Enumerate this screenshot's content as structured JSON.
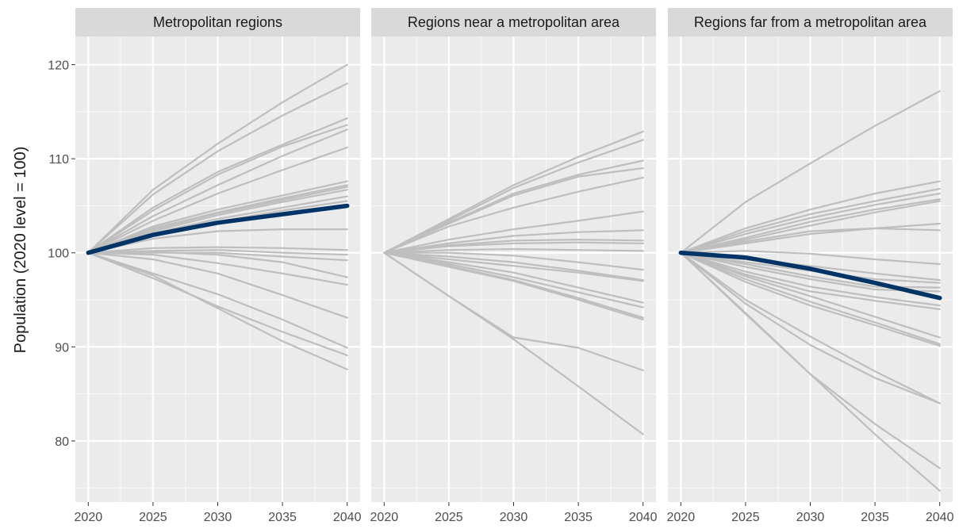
{
  "chart_data": {
    "type": "line",
    "ylabel": "Population (2020 level = 100)",
    "xlabel": "",
    "x": [
      2020,
      2025,
      2030,
      2035,
      2040
    ],
    "xticks": [
      2020,
      2025,
      2030,
      2035,
      2040
    ],
    "yticks": [
      80,
      90,
      100,
      110,
      120
    ],
    "ylim": [
      73.5,
      123
    ],
    "xlim": [
      2019,
      2041
    ],
    "grid": true,
    "background_color": "#ebebeb",
    "colors": {
      "region": "#bebebe",
      "highlight": "#003366"
    },
    "panels": [
      {
        "title": "Metropolitan regions",
        "series": [
          {
            "values": [
              100,
              106.7,
              111.6,
              116.0,
              120.0
            ]
          },
          {
            "values": [
              100,
              106.2,
              110.8,
              114.6,
              118.0
            ]
          },
          {
            "values": [
              100,
              104.8,
              108.6,
              111.5,
              114.3
            ]
          },
          {
            "values": [
              100,
              104.5,
              108.3,
              111.3,
              113.6
            ]
          },
          {
            "values": [
              100,
              103.9,
              107.2,
              110.3,
              113.1
            ]
          },
          {
            "values": [
              100,
              103.4,
              106.3,
              108.8,
              111.2
            ]
          },
          {
            "values": [
              100,
              102.8,
              104.6,
              106.1,
              107.6
            ]
          },
          {
            "values": [
              100,
              102.6,
              104.3,
              105.8,
              107.2
            ]
          },
          {
            "values": [
              100,
              102.5,
              104.2,
              105.6,
              107.0
            ]
          },
          {
            "values": [
              100,
              102.3,
              104.0,
              105.4,
              106.7
            ]
          },
          {
            "values": [
              100,
              102.1,
              103.6,
              104.8,
              106.0
            ]
          },
          {
            "values": [
              100,
              101.9,
              103.3,
              104.5,
              105.5
            ]
          },
          {
            "values": [
              100,
              101.5,
              102.3,
              102.5,
              102.5
            ]
          },
          {
            "values": [
              100,
              100.5,
              100.6,
              100.5,
              100.3
            ]
          },
          {
            "values": [
              100,
              100.2,
              100.3,
              100.0,
              99.8
            ]
          },
          {
            "values": [
              100,
              100.0,
              100.0,
              99.6,
              99.2
            ]
          },
          {
            "values": [
              100,
              100.1,
              99.8,
              99.0,
              97.4
            ]
          },
          {
            "values": [
              100,
              99.8,
              98.9,
              97.8,
              96.6
            ]
          },
          {
            "values": [
              100,
              99.3,
              97.8,
              95.5,
              93.1
            ]
          },
          {
            "values": [
              100,
              97.8,
              95.6,
              92.9,
              89.9
            ]
          },
          {
            "values": [
              100,
              97.3,
              94.3,
              91.6,
              89.1
            ]
          },
          {
            "values": [
              100,
              97.6,
              94.1,
              90.6,
              87.6
            ]
          }
        ],
        "highlight": {
          "values": [
            100,
            101.9,
            103.2,
            104.1,
            105.0
          ]
        }
      },
      {
        "title": "Regions near a metropolitan area",
        "series": [
          {
            "values": [
              100,
              103.6,
              107.2,
              110.2,
              112.9
            ]
          },
          {
            "values": [
              100,
              103.4,
              106.9,
              109.6,
              112.0
            ]
          },
          {
            "values": [
              100,
              103.2,
              106.3,
              108.3,
              109.8
            ]
          },
          {
            "values": [
              100,
              103.1,
              106.1,
              108.1,
              109.0
            ]
          },
          {
            "values": [
              100,
              102.8,
              104.8,
              106.5,
              108.0
            ]
          },
          {
            "values": [
              100,
              101.4,
              102.5,
              103.4,
              104.4
            ]
          },
          {
            "values": [
              100,
              101.0,
              101.8,
              102.2,
              102.4
            ]
          },
          {
            "values": [
              100,
              100.8,
              101.3,
              101.4,
              101.3
            ]
          },
          {
            "values": [
              100,
              100.7,
              101.0,
              101.1,
              101.0
            ]
          },
          {
            "values": [
              100,
              100.3,
              100.4,
              100.3,
              100.2
            ]
          },
          {
            "values": [
              100,
              100.0,
              99.7,
              99.0,
              98.2
            ]
          },
          {
            "values": [
              100,
              99.6,
              99.0,
              98.1,
              97.1
            ]
          },
          {
            "values": [
              100,
              99.3,
              98.6,
              97.9,
              97.0
            ]
          },
          {
            "values": [
              100,
              99.0,
              97.9,
              96.3,
              94.7
            ]
          },
          {
            "values": [
              100,
              98.8,
              97.4,
              95.8,
              94.2
            ]
          },
          {
            "values": [
              100,
              98.6,
              97.1,
              95.2,
              93.1
            ]
          },
          {
            "values": [
              100,
              98.5,
              97.0,
              95.0,
              92.9
            ]
          },
          {
            "values": [
              100,
              95.4,
              91.0,
              89.9,
              87.5
            ]
          },
          {
            "values": [
              100,
              95.4,
              90.8,
              85.8,
              80.7
            ]
          }
        ]
      },
      {
        "title": "Regions far from a metropolitan area",
        "series": [
          {
            "values": [
              100,
              105.4,
              109.5,
              113.5,
              117.2
            ]
          },
          {
            "values": [
              100,
              102.6,
              104.6,
              106.3,
              107.6
            ]
          },
          {
            "values": [
              100,
              102.3,
              104.1,
              105.5,
              106.8
            ]
          },
          {
            "values": [
              100,
              102.0,
              103.7,
              105.1,
              106.3
            ]
          },
          {
            "values": [
              100,
              101.6,
              103.3,
              104.6,
              105.7
            ]
          },
          {
            "values": [
              100,
              101.4,
              102.9,
              104.3,
              105.5
            ]
          },
          {
            "values": [
              100,
              101.0,
              102.0,
              102.6,
              103.1
            ]
          },
          {
            "values": [
              100,
              101.2,
              102.3,
              102.6,
              102.4
            ]
          },
          {
            "values": [
              100,
              100.2,
              99.9,
              99.3,
              98.8
            ]
          },
          {
            "values": [
              100,
              99.3,
              98.6,
              97.8,
              97.1
            ]
          },
          {
            "values": [
              100,
              99.0,
              98.1,
              97.2,
              96.8
            ]
          },
          {
            "values": [
              100,
              98.8,
              97.5,
              96.4,
              96.3
            ]
          },
          {
            "values": [
              100,
              98.5,
              97.2,
              96.1,
              95.9
            ]
          },
          {
            "values": [
              100,
              98.0,
              96.4,
              95.3,
              94.4
            ]
          },
          {
            "values": [
              100,
              97.7,
              95.9,
              94.9,
              94.0
            ]
          },
          {
            "values": [
              100,
              97.5,
              95.4,
              93.2,
              91.0
            ]
          },
          {
            "values": [
              100,
              97.2,
              94.8,
              92.6,
              90.3
            ]
          },
          {
            "values": [
              100,
              96.9,
              94.4,
              92.3,
              90.1
            ]
          },
          {
            "values": [
              100,
              95.0,
              91.1,
              87.4,
              84.0
            ]
          },
          {
            "values": [
              100,
              94.6,
              90.2,
              86.7,
              84.0
            ]
          },
          {
            "values": [
              100,
              93.6,
              87.1,
              81.8,
              77.1
            ]
          },
          {
            "values": [
              100,
              93.5,
              87.1,
              80.7,
              74.7
            ]
          }
        ],
        "highlight": {
          "values": [
            100,
            99.5,
            98.3,
            96.8,
            95.2
          ]
        }
      }
    ]
  }
}
